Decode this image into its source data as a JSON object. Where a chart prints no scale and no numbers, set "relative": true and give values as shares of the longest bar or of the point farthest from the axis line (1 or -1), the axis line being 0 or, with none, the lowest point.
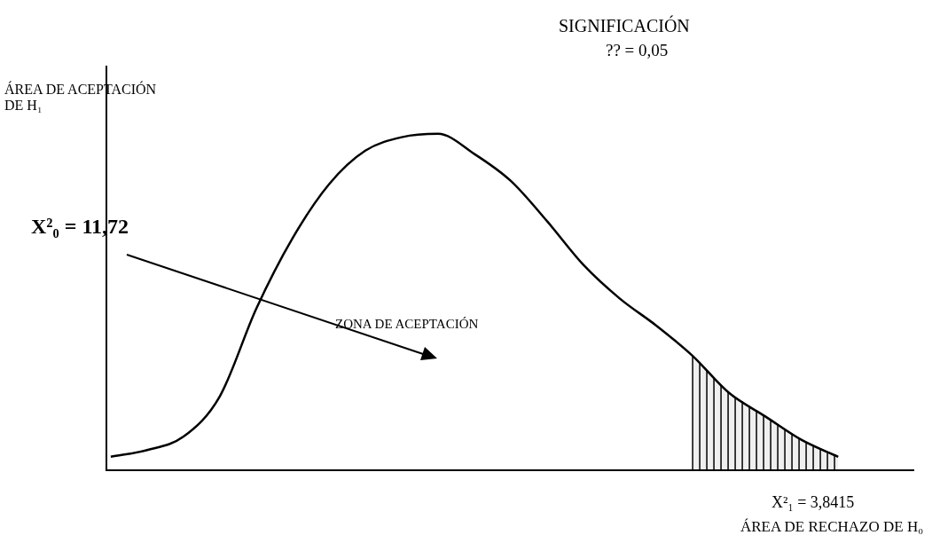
{
  "chart_data": {
    "type": "line",
    "relative": true,
    "categories": [
      null,
      null,
      null,
      null,
      null,
      null,
      null,
      null,
      null,
      null,
      null,
      null,
      null,
      null,
      null,
      null,
      null,
      null,
      null,
      null,
      null
    ],
    "series": [
      {
        "type": "line",
        "color": "#000000",
        "values": [
          0.04,
          0.06,
          0.1,
          0.22,
          0.48,
          0.69,
          0.85,
          0.95,
          0.99,
          1.0,
          0.94,
          0.86,
          0.74,
          0.61,
          0.51,
          0.43,
          0.34,
          0.23,
          0.16,
          0.09,
          0.04
        ]
      },
      {
        "type": "area",
        "color": "#000000",
        "values": [
          null,
          null,
          null,
          null,
          null,
          null,
          null,
          null,
          null,
          null,
          null,
          null,
          null,
          null,
          null,
          null,
          0.34,
          0.23,
          0.16,
          0.09,
          0.04
        ]
      }
    ],
    "annotations": [
      "SIGNIFICACIÓN",
      "?? = 0,05",
      "ÁREA DE ACEPTACIÓN DE H₁",
      "X²₀ = 11,72",
      "ZONA DE ACEPTACIÓN",
      "X²₁ = 3,8415",
      "ÁREA DE RECHAZO DE H₀"
    ],
    "legend": false,
    "marker": "none",
    "line_style": "solid",
    "grid": false,
    "tick_labels": false
  }
}
